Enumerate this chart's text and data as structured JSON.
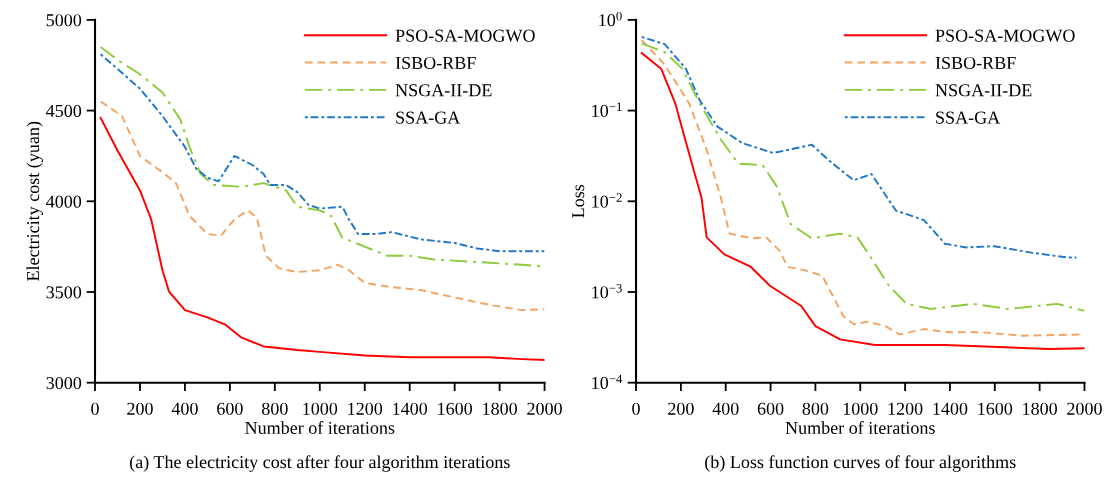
{
  "chart_data": [
    {
      "type": "line",
      "title": "(a) The electricity cost after four algorithm iterations",
      "xlabel": "Number of iterations",
      "ylabel": "Electricity cost (yuan)",
      "xlim": [
        0,
        2000
      ],
      "xticks": [
        0,
        200,
        400,
        600,
        800,
        1000,
        1200,
        1400,
        1600,
        1800,
        2000
      ],
      "ylim": [
        3000,
        5000
      ],
      "yticks": [
        3000,
        3500,
        4000,
        4500,
        5000
      ],
      "grid": false,
      "legend": "top right",
      "series": [
        {
          "name": "PSO-SA-MOGWO",
          "color": "#ff0000",
          "line_style": "solid",
          "x": [
            25,
            100,
            200,
            250,
            300,
            330,
            400,
            500,
            580,
            650,
            750,
            900,
            1000,
            1200,
            1400,
            1600,
            1750,
            1900,
            2000
          ],
          "values": [
            4460,
            4280,
            4060,
            3900,
            3620,
            3500,
            3400,
            3360,
            3320,
            3250,
            3200,
            3180,
            3170,
            3150,
            3140,
            3140,
            3140,
            3130,
            3125
          ]
        },
        {
          "name": "ISBO-RBF",
          "color": "#f4a460",
          "line_style": "dashed",
          "x": [
            25,
            120,
            200,
            300,
            360,
            420,
            500,
            560,
            620,
            680,
            720,
            760,
            820,
            900,
            1000,
            1080,
            1130,
            1200,
            1300,
            1450,
            1600,
            1750,
            1900,
            2000
          ],
          "values": [
            4550,
            4470,
            4250,
            4160,
            4100,
            3920,
            3820,
            3810,
            3900,
            3950,
            3910,
            3700,
            3630,
            3610,
            3620,
            3650,
            3620,
            3550,
            3530,
            3510,
            3470,
            3430,
            3400,
            3405
          ]
        },
        {
          "name": "NSGA-II-DE",
          "color": "#8ccc3c",
          "line_style": "dashdot",
          "x": [
            25,
            100,
            200,
            300,
            380,
            420,
            470,
            530,
            650,
            750,
            850,
            900,
            1000,
            1050,
            1100,
            1200,
            1300,
            1400,
            1500,
            1700,
            1900,
            2000
          ],
          "values": [
            4850,
            4780,
            4700,
            4600,
            4450,
            4300,
            4150,
            4090,
            4080,
            4100,
            4060,
            3970,
            3950,
            3920,
            3800,
            3750,
            3700,
            3700,
            3680,
            3665,
            3650,
            3640
          ]
        },
        {
          "name": "SSA-GA",
          "color": "#1f78c8",
          "line_style": "dashdotdot",
          "x": [
            25,
            100,
            200,
            300,
            400,
            450,
            500,
            550,
            620,
            700,
            750,
            780,
            850,
            900,
            950,
            1000,
            1100,
            1130,
            1170,
            1250,
            1320,
            1450,
            1600,
            1700,
            1800,
            2000
          ],
          "values": [
            4810,
            4730,
            4620,
            4470,
            4300,
            4180,
            4130,
            4110,
            4250,
            4200,
            4150,
            4090,
            4090,
            4050,
            3980,
            3960,
            3970,
            3900,
            3820,
            3820,
            3830,
            3790,
            3770,
            3740,
            3725,
            3725
          ]
        }
      ]
    },
    {
      "type": "line",
      "title": "(b) Loss function curves of four algorithms",
      "xlabel": "Number of iterations",
      "ylabel": "Loss",
      "log": "y",
      "xlim": [
        0,
        2000
      ],
      "xticks": [
        0,
        200,
        400,
        600,
        800,
        1000,
        1200,
        1400,
        1600,
        1800,
        2000
      ],
      "ylim": [
        0.0001,
        1
      ],
      "yticks": [
        {
          "value": 0.0001,
          "label": "10$^{−4}$"
        },
        {
          "value": 0.001,
          "label": "10$^{−3}$"
        },
        {
          "value": 0.01,
          "label": "10$^{−2}$"
        },
        {
          "value": 0.1,
          "label": "10$^{−1}$"
        },
        {
          "value": 1,
          "label": "10$^{0}$"
        }
      ],
      "grid": false,
      "legend": "top right",
      "series": [
        {
          "name": "PSO-SA-MOGWO",
          "color": "#ff0000",
          "line_style": "solid",
          "x": [
            25,
            112,
            175,
            253,
            292,
            315,
            394,
            511,
            597,
            737,
            800,
            910,
            1066,
            1378,
            1846,
            2000
          ],
          "values": [
            0.43,
            0.29,
            0.12,
            0.024,
            0.011,
            0.004,
            0.0026,
            0.0019,
            0.00117,
            0.0007,
            0.00042,
            0.0003,
            0.00026,
            0.00026,
            0.000235,
            0.00024
          ]
        },
        {
          "name": "ISBO-RBF",
          "color": "#f4a460",
          "line_style": "dashed",
          "x": [
            25,
            128,
            237,
            315,
            378,
            417,
            519,
            581,
            643,
            675,
            770,
            831,
            925,
            971,
            1034,
            1112,
            1175,
            1284,
            1394,
            1540,
            1722,
            2000
          ],
          "values": [
            0.6,
            0.32,
            0.12,
            0.037,
            0.011,
            0.0044,
            0.0039,
            0.004,
            0.0028,
            0.0019,
            0.0017,
            0.0015,
            0.00054,
            0.00044,
            0.00047,
            0.00042,
            0.00034,
            0.00039,
            0.00036,
            0.00036,
            0.00033,
            0.00034
          ]
        },
        {
          "name": "NSGA-II-DE",
          "color": "#8ccc3c",
          "line_style": "dashdot",
          "x": [
            25,
            128,
            206,
            284,
            378,
            456,
            565,
            628,
            690,
            784,
            909,
            987,
            1034,
            1128,
            1206,
            1315,
            1503,
            1659,
            1878,
            2000
          ],
          "values": [
            0.55,
            0.44,
            0.29,
            0.12,
            0.048,
            0.026,
            0.025,
            0.0145,
            0.0056,
            0.0039,
            0.0044,
            0.004,
            0.0027,
            0.00117,
            0.00074,
            0.00065,
            0.00074,
            0.00065,
            0.00074,
            0.00062
          ]
        },
        {
          "name": "SSA-GA",
          "color": "#1f78c8",
          "line_style": "dashdotdot",
          "x": [
            25,
            128,
            222,
            284,
            362,
            472,
            612,
            784,
            862,
            971,
            1050,
            1159,
            1284,
            1378,
            1472,
            1597,
            1769,
            1925,
            1964
          ],
          "values": [
            0.65,
            0.54,
            0.29,
            0.13,
            0.067,
            0.044,
            0.034,
            0.042,
            0.028,
            0.017,
            0.02,
            0.0079,
            0.0062,
            0.0034,
            0.0031,
            0.0032,
            0.0027,
            0.0024,
            0.0024
          ]
        }
      ]
    }
  ]
}
